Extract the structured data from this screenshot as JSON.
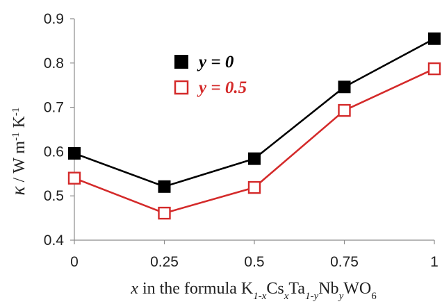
{
  "chart_data": {
    "type": "line",
    "x": [
      0,
      0.25,
      0.5,
      0.75,
      1
    ],
    "x_tick_labels": [
      "0",
      "0.25",
      "0.5",
      "0.75",
      "1"
    ],
    "y_tick_labels": [
      "0.4",
      "0.5",
      "0.6",
      "0.7",
      "0.8",
      "0.9"
    ],
    "xlim": [
      0,
      1
    ],
    "ylim": [
      0.4,
      0.9
    ],
    "grid": false,
    "legend_position": "top-left",
    "xlabel": {
      "x_var": "x",
      "mid": " in the formula K",
      "sub1": "1-x",
      "cs": "Cs",
      "sub2": "x",
      "ta": "Ta",
      "sub3": "1-y",
      "nb": "Nb",
      "sub4": "y",
      "wo": "WO",
      "sub5": "6"
    },
    "ylabel": {
      "kappa": "κ",
      "units": " / W m",
      "sup1": "-1",
      "k": " K",
      "sup2": "-1"
    },
    "series": [
      {
        "name": "y = 0",
        "name_var": "y",
        "name_eq": " = 0",
        "values": [
          0.596,
          0.521,
          0.584,
          0.746,
          0.855
        ],
        "color": "#000000",
        "marker": "filled-square"
      },
      {
        "name": "y = 0.5",
        "name_var": "y",
        "name_eq": " = 0.5",
        "values": [
          0.54,
          0.461,
          0.519,
          0.693,
          0.787
        ],
        "color": "#d42a2a",
        "marker": "open-square"
      }
    ]
  }
}
